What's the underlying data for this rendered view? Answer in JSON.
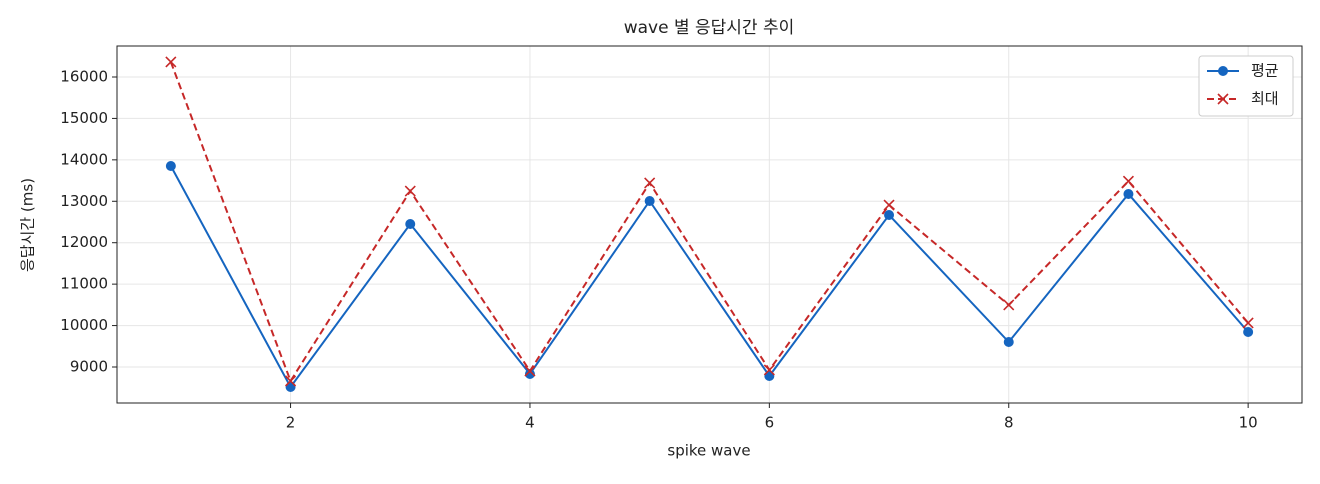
{
  "chart_data": {
    "type": "line",
    "title": "wave 별 응답시간 추이",
    "x_label": "spike wave",
    "y_label": "응답시간 (ms)",
    "x": [
      1,
      2,
      3,
      4,
      5,
      6,
      7,
      8,
      9,
      10
    ],
    "series": [
      {
        "name": "평균",
        "color": "#1565c0",
        "marker": "o",
        "linestyle": "solid",
        "values": [
          13852,
          8517,
          12452,
          8831,
          13007,
          8783,
          12669,
          9603,
          13176,
          9845
        ]
      },
      {
        "name": "최대",
        "color": "#c62828",
        "marker": "x",
        "linestyle": "dashed",
        "values": [
          16362,
          8662,
          13248,
          8903,
          13442,
          8928,
          12910,
          10497,
          13486,
          10063
        ]
      }
    ],
    "xlim": [
      0.55,
      10.45
    ],
    "xticks": [
      2,
      4,
      6,
      8,
      10
    ],
    "ylim": [
      8131,
      16748
    ],
    "yticks": [
      9000,
      10000,
      11000,
      12000,
      13000,
      14000,
      15000,
      16000
    ],
    "grid": true,
    "legend": "upper right"
  }
}
